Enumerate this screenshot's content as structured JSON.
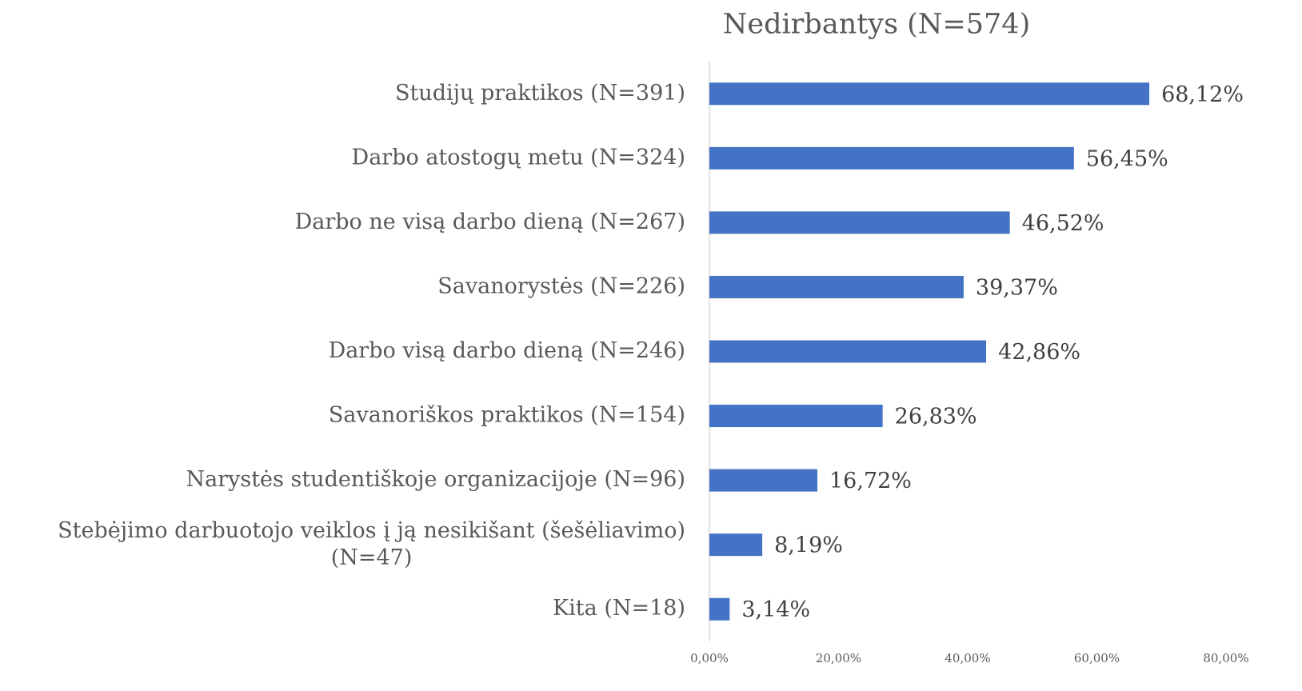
{
  "chart_data": {
    "type": "bar",
    "orientation": "horizontal",
    "title": "Nedirbantys (N=574)",
    "categories": [
      "Studijų praktikos (N=391)",
      "Darbo atostogų metu (N=324)",
      "Darbo ne visą darbo dieną (N=267)",
      "Savanorystės (N=226)",
      "Darbo visą darbo dieną (N=246)",
      "Savanoriškos praktikos (N=154)",
      "Narystės studentiškoje organizacijoje (N=96)",
      "Stebėjimo darbuotojo veiklos į ją nesikišant (šešėliavimo) (N=47)",
      "Kita (N=18)"
    ],
    "values": [
      68.12,
      56.45,
      46.52,
      39.37,
      42.86,
      26.83,
      16.72,
      8.19,
      3.14
    ],
    "value_labels": [
      "68,12%",
      "56,45%",
      "46,52%",
      "39,37%",
      "42,86%",
      "26,83%",
      "16,72%",
      "8,19%",
      "3,14%"
    ],
    "color": "#4472c4",
    "xlim": [
      0,
      80
    ],
    "xticks": [
      {
        "value": 0,
        "label": "0,00%"
      },
      {
        "value": 20,
        "label": "20,00%"
      },
      {
        "value": 40,
        "label": "40,00%"
      },
      {
        "value": 60,
        "label": "60,00%"
      },
      {
        "value": 80,
        "label": "80,00%"
      }
    ],
    "grid": false
  }
}
